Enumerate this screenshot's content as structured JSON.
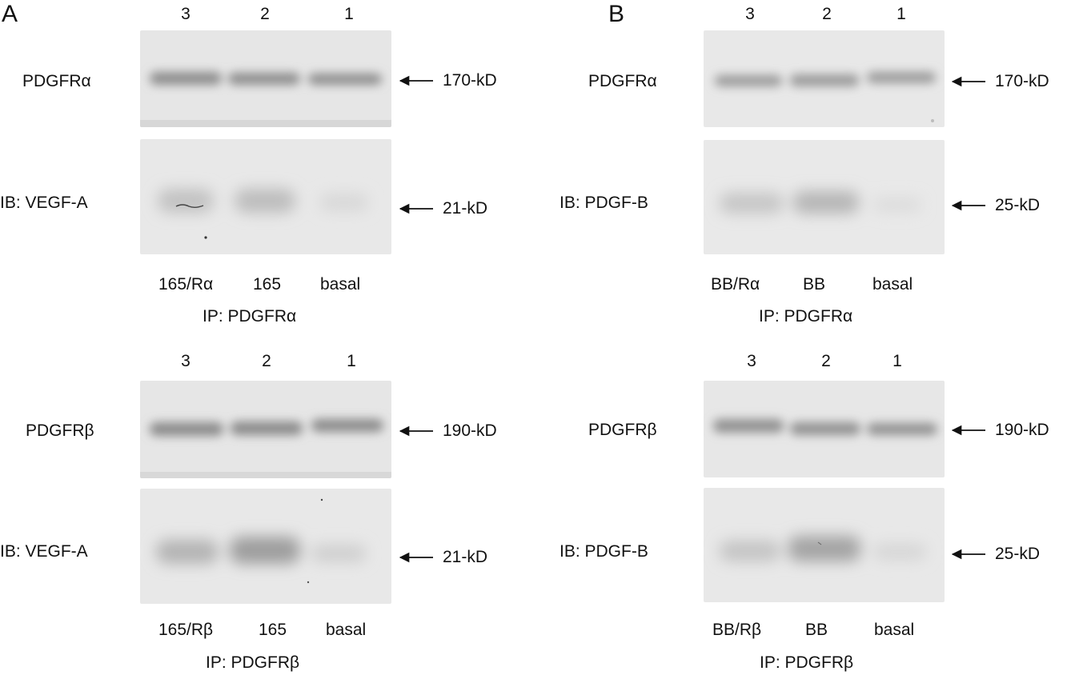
{
  "panels": [
    {
      "letter": "A",
      "top": {
        "lanes": [
          "3",
          "2",
          "1"
        ],
        "rows": [
          {
            "label": "PDGFRα",
            "marker": "170-kD"
          },
          {
            "label": "IB: VEGF-A",
            "marker": "21-kD"
          }
        ],
        "conditions": [
          "165/Rα",
          "165",
          "basal"
        ],
        "ip": "IP: PDGFRα"
      },
      "bottom": {
        "lanes": [
          "3",
          "2",
          "1"
        ],
        "rows": [
          {
            "label": "PDGFRβ",
            "marker": "190-kD"
          },
          {
            "label": "IB: VEGF-A",
            "marker": "21-kD"
          }
        ],
        "conditions": [
          "165/Rβ",
          "165",
          "basal"
        ],
        "ip": "IP: PDGFRβ"
      }
    },
    {
      "letter": "B",
      "top": {
        "lanes": [
          "3",
          "2",
          "1"
        ],
        "rows": [
          {
            "label": "PDGFRα",
            "marker": "170-kD"
          },
          {
            "label": "IB: PDGF-B",
            "marker": "25-kD"
          }
        ],
        "conditions": [
          "BB/Rα",
          "BB",
          "basal"
        ],
        "ip": "IP: PDGFRα"
      },
      "bottom": {
        "lanes": [
          "3",
          "2",
          "1"
        ],
        "rows": [
          {
            "label": "PDGFRβ",
            "marker": "190-kD"
          },
          {
            "label": "IB: PDGF-B",
            "marker": "25-kD"
          }
        ],
        "conditions": [
          "BB/Rβ",
          "BB",
          "basal"
        ],
        "ip": "IP: PDGFRβ"
      }
    }
  ]
}
